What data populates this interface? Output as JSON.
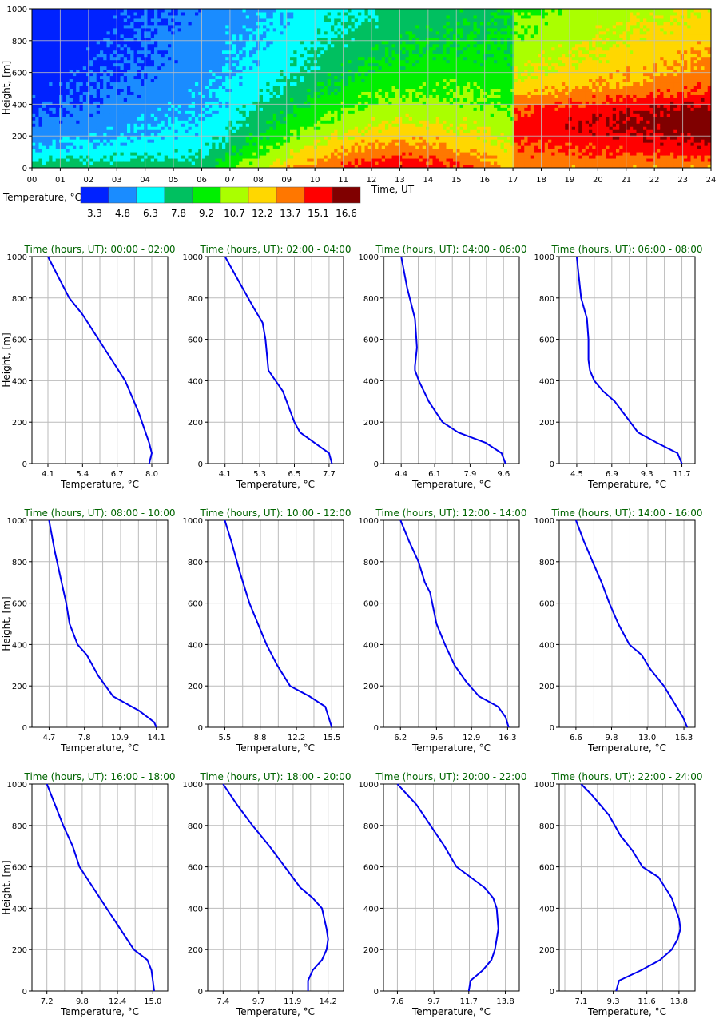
{
  "heatmap": {
    "xlabel": "Time, UT",
    "ylabel": "Height, [m]",
    "x_ticks": [
      "00",
      "01",
      "02",
      "03",
      "04",
      "05",
      "06",
      "07",
      "08",
      "09",
      "10",
      "11",
      "12",
      "13",
      "14",
      "15",
      "16",
      "17",
      "18",
      "19",
      "20",
      "21",
      "22",
      "23",
      "24"
    ],
    "y_ticks": [
      "0",
      "200",
      "400",
      "600",
      "800",
      "1000"
    ],
    "colorbar_title": "Temperature, °C",
    "colorbar_labels": [
      "3.3",
      "4.8",
      "6.3",
      "7.8",
      "9.2",
      "10.7",
      "12.2",
      "13.7",
      "15.1",
      "16.6"
    ],
    "colors": [
      "#0022ff",
      "#1a8cff",
      "#00ffff",
      "#00c060",
      "#00f000",
      "#aaff00",
      "#ffd700",
      "#ff7700",
      "#ff0000",
      "#800000"
    ]
  },
  "profile_axes": {
    "xlabel": "Temperature, °C",
    "ylabel": "Height, [m]",
    "y_ticks": [
      "0",
      "200",
      "400",
      "600",
      "800",
      "1000"
    ]
  },
  "colors": {
    "title": "#006400",
    "line": "#0000ee",
    "grid": "#bbbbbb"
  },
  "chart_data": [
    {
      "type": "heatmap",
      "x": [
        0,
        1,
        2,
        3,
        4,
        5,
        6,
        7,
        8,
        9,
        10,
        11,
        12,
        13,
        14,
        15,
        16,
        17,
        18,
        19,
        20,
        21,
        22,
        23,
        24
      ],
      "ylim": [
        0,
        1000
      ],
      "levels": [
        3.3,
        4.8,
        6.3,
        7.8,
        9.2,
        10.7,
        12.2,
        13.7,
        15.1,
        16.6
      ],
      "level_boundaries_by_hour": {
        "note_free": [
          [
            0,
            0,
            20,
            60,
            200,
            400,
            600,
            950,
            1000,
            1000,
            1000
          ],
          [
            1,
            0,
            20,
            60,
            180,
            400,
            600,
            950,
            1000,
            1000,
            1000
          ],
          [
            2,
            0,
            20,
            40,
            90,
            280,
            570,
            930,
            1000,
            1000,
            1000
          ],
          [
            3,
            0,
            20,
            40,
            60,
            230,
            560,
            930,
            1000,
            1000,
            1000
          ],
          [
            4,
            0,
            10,
            30,
            40,
            200,
            540,
            920,
            1000,
            1000,
            1000
          ],
          [
            5,
            0,
            10,
            20,
            30,
            250,
            540,
            920,
            1000,
            1000,
            1000
          ],
          [
            6,
            0,
            10,
            20,
            50,
            310,
            560,
            920,
            1000,
            1000,
            1000
          ],
          [
            7,
            0,
            20,
            50,
            100,
            330,
            580,
            930,
            1000,
            1000,
            1000
          ],
          [
            8,
            0,
            30,
            80,
            130,
            360,
            600,
            960,
            1000,
            1000,
            1000
          ],
          [
            9,
            0,
            40,
            100,
            160,
            390,
            640,
            1000,
            1000,
            1000,
            1000
          ],
          [
            10,
            30,
            80,
            130,
            200,
            430,
            780,
            1000,
            1000,
            1000,
            1000
          ],
          [
            11,
            60,
            110,
            170,
            240,
            480,
            850,
            1000,
            1000,
            1000,
            1000
          ],
          [
            12,
            90,
            150,
            200,
            300,
            550,
            900,
            1000,
            1000,
            1000,
            1000
          ],
          [
            13,
            110,
            160,
            220,
            330,
            600,
            930,
            1000,
            1000,
            1000,
            1000
          ],
          [
            14,
            120,
            170,
            240,
            370,
            640,
            950,
            1000,
            1000,
            1000,
            1000
          ],
          [
            15,
            120,
            180,
            260,
            400,
            680,
            960,
            1000,
            1000,
            1000,
            1000
          ],
          [
            16,
            120,
            190,
            280,
            430,
            720,
            980,
            1000,
            1000,
            1000,
            1000
          ],
          [
            17,
            120,
            200,
            300,
            450,
            760,
            1000,
            1000,
            1000,
            1000,
            1000
          ],
          [
            18,
            120,
            200,
            300,
            450,
            760,
            1000,
            1000,
            1000,
            1000,
            1000
          ]
        ]
      }
    },
    {
      "type": "line",
      "title": "Time (hours, UT): 00:00 - 02:00",
      "x_ticks": [
        4.1,
        5.4,
        6.7,
        8.0
      ],
      "xlim": [
        3.5,
        8.6
      ],
      "ylim": [
        0,
        1000
      ],
      "x": [
        4.1,
        4.5,
        4.9,
        5.4,
        6.0,
        6.5,
        7.0,
        7.5,
        7.9,
        8.0,
        7.9
      ],
      "y": [
        1000,
        900,
        800,
        720,
        600,
        500,
        400,
        250,
        100,
        50,
        0
      ]
    },
    {
      "type": "line",
      "title": "Time (hours, UT): 02:00 - 04:00",
      "x_ticks": [
        4.1,
        5.3,
        6.5,
        7.7
      ],
      "xlim": [
        3.5,
        8.2
      ],
      "ylim": [
        0,
        1000
      ],
      "x": [
        4.1,
        4.7,
        5.1,
        5.4,
        5.5,
        5.6,
        6.1,
        6.5,
        6.7,
        7.2,
        7.7,
        7.8
      ],
      "y": [
        1000,
        850,
        750,
        680,
        600,
        450,
        350,
        200,
        150,
        100,
        50,
        0
      ]
    },
    {
      "type": "line",
      "title": "Time (hours, UT): 04:00 - 06:00",
      "x_ticks": [
        4.4,
        6.1,
        7.9,
        9.6
      ],
      "xlim": [
        3.5,
        10.4
      ],
      "ylim": [
        0,
        1000
      ],
      "x": [
        4.4,
        4.7,
        5.1,
        5.2,
        5.1,
        5.1,
        5.3,
        5.8,
        6.5,
        7.3,
        8.7,
        9.5,
        9.7
      ],
      "y": [
        1000,
        850,
        700,
        560,
        470,
        450,
        400,
        300,
        200,
        150,
        100,
        50,
        0
      ]
    },
    {
      "type": "line",
      "title": "Time (hours, UT): 06:00 - 08:00",
      "x_ticks": [
        4.5,
        6.9,
        9.3,
        11.7
      ],
      "xlim": [
        3.3,
        12.6
      ],
      "ylim": [
        0,
        1000
      ],
      "x": [
        4.5,
        4.8,
        5.2,
        5.3,
        5.3,
        5.4,
        5.7,
        6.3,
        7.1,
        8.7,
        10.0,
        11.4,
        11.7
      ],
      "y": [
        1000,
        800,
        700,
        600,
        500,
        450,
        400,
        350,
        300,
        150,
        100,
        50,
        0
      ]
    },
    {
      "type": "line",
      "title": "Time (hours, UT): 08:00 - 10:00",
      "x_ticks": [
        4.7,
        7.8,
        10.9,
        14.1
      ],
      "xlim": [
        3.2,
        15.1
      ],
      "ylim": [
        0,
        1000
      ],
      "x": [
        4.7,
        5.2,
        5.8,
        6.2,
        6.5,
        7.2,
        8.0,
        9.0,
        10.3,
        12.6,
        13.9,
        14.1
      ],
      "y": [
        1000,
        850,
        700,
        600,
        500,
        400,
        350,
        250,
        150,
        80,
        25,
        0
      ]
    },
    {
      "type": "line",
      "title": "Time (hours, UT): 10:00 - 12:00",
      "x_ticks": [
        5.5,
        8.8,
        12.2,
        15.5
      ],
      "xlim": [
        3.9,
        16.6
      ],
      "ylim": [
        0,
        1000
      ],
      "x": [
        5.5,
        6.1,
        6.9,
        7.8,
        8.6,
        9.4,
        10.4,
        11.6,
        13.4,
        14.9,
        15.5
      ],
      "y": [
        1000,
        900,
        750,
        600,
        500,
        400,
        300,
        200,
        150,
        100,
        0
      ]
    },
    {
      "type": "line",
      "title": "Time (hours, UT): 12:00 - 14:00",
      "x_ticks": [
        6.2,
        9.6,
        12.9,
        16.3
      ],
      "xlim": [
        4.6,
        17.4
      ],
      "ylim": [
        0,
        1000
      ],
      "x": [
        6.2,
        7.0,
        7.9,
        8.5,
        9.0,
        9.6,
        10.4,
        11.3,
        12.4,
        13.6,
        15.4,
        16.1,
        16.4
      ],
      "y": [
        1000,
        900,
        800,
        700,
        650,
        500,
        400,
        300,
        220,
        150,
        100,
        50,
        0
      ]
    },
    {
      "type": "line",
      "title": "Time (hours, UT): 14:00 - 16:00",
      "x_ticks": [
        6.6,
        9.8,
        13.0,
        16.3
      ],
      "xlim": [
        5.1,
        17.3
      ],
      "ylim": [
        0,
        1000
      ],
      "x": [
        6.6,
        7.3,
        8.1,
        8.9,
        9.6,
        10.4,
        11.4,
        12.5,
        13.3,
        14.5,
        16.2,
        16.6
      ],
      "y": [
        1000,
        900,
        800,
        700,
        600,
        500,
        400,
        350,
        280,
        200,
        50,
        0
      ]
    },
    {
      "type": "line",
      "title": "Time (hours, UT): 16:00 - 18:00",
      "x_ticks": [
        7.2,
        9.8,
        12.4,
        15.0
      ],
      "xlim": [
        6.1,
        16.1
      ],
      "ylim": [
        0,
        1000
      ],
      "x": [
        7.2,
        7.8,
        8.4,
        9.1,
        9.6,
        10.6,
        11.6,
        12.6,
        13.6,
        14.6,
        14.9,
        15.0,
        15.1
      ],
      "y": [
        1000,
        900,
        800,
        700,
        600,
        500,
        400,
        300,
        200,
        150,
        100,
        50,
        0
      ]
    },
    {
      "type": "line",
      "title": "Time (hours, UT): 18:00 - 20:00",
      "x_ticks": [
        7.4,
        9.7,
        11.9,
        14.2
      ],
      "xlim": [
        6.4,
        15.2
      ],
      "ylim": [
        0,
        1000
      ],
      "x": [
        7.4,
        8.3,
        9.3,
        10.4,
        11.4,
        12.4,
        13.2,
        13.8,
        14.1,
        14.2,
        14.1,
        13.8,
        13.2,
        12.9,
        12.9
      ],
      "y": [
        1000,
        900,
        800,
        700,
        600,
        500,
        450,
        400,
        300,
        250,
        200,
        150,
        100,
        50,
        0
      ]
    },
    {
      "type": "line",
      "title": "Time (hours, UT): 20:00 - 22:00",
      "x_ticks": [
        7.6,
        9.7,
        11.7,
        13.8
      ],
      "xlim": [
        6.8,
        14.6
      ],
      "ylim": [
        0,
        1000
      ],
      "x": [
        7.6,
        8.7,
        9.5,
        10.3,
        11.0,
        11.8,
        12.6,
        13.1,
        13.3,
        13.4,
        13.2,
        13.0,
        12.5,
        11.8,
        11.7
      ],
      "y": [
        1000,
        900,
        800,
        700,
        600,
        550,
        500,
        450,
        400,
        300,
        200,
        150,
        100,
        50,
        0
      ]
    },
    {
      "type": "line",
      "title": "Time (hours, UT): 22:00 - 24:00",
      "x_ticks": [
        7.1,
        9.3,
        11.6,
        13.8
      ],
      "xlim": [
        5.6,
        14.9
      ],
      "ylim": [
        0,
        1000
      ],
      "x": [
        7.1,
        7.8,
        8.4,
        9.0,
        9.8,
        10.6,
        11.3,
        12.4,
        13.3,
        13.8,
        13.9,
        13.7,
        13.3,
        12.5,
        11.2,
        9.7,
        9.5
      ],
      "y": [
        1000,
        950,
        900,
        850,
        750,
        680,
        600,
        550,
        450,
        350,
        300,
        250,
        200,
        150,
        100,
        50,
        0
      ]
    }
  ]
}
